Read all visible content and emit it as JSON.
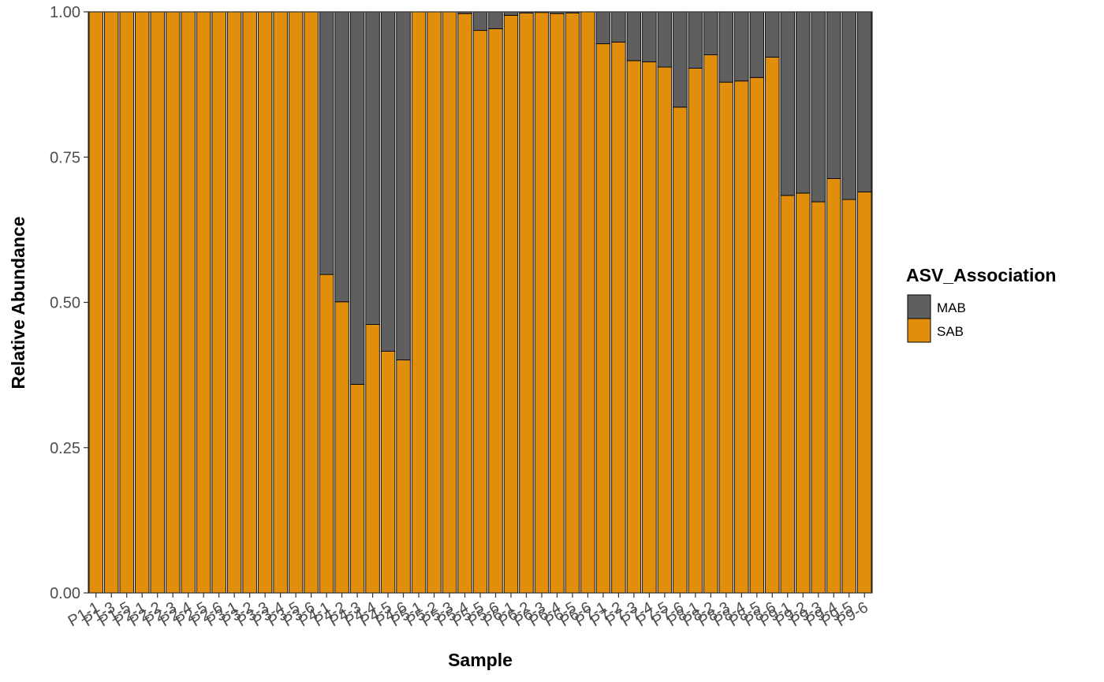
{
  "chart_data": {
    "type": "bar",
    "stacked": true,
    "xlabel": "Sample",
    "ylabel": "Relative Abundance",
    "ylim": [
      0,
      1
    ],
    "yticks": [
      "0.00",
      "0.25",
      "0.50",
      "0.75",
      "1.00"
    ],
    "legend": {
      "title": "ASV_Association",
      "placement": "right",
      "entries": [
        {
          "label": "MAB",
          "color": "#5f5f5f"
        },
        {
          "label": "SAB",
          "color": "#e08e0b"
        }
      ]
    },
    "categories": [
      "P1-1",
      "P1-3",
      "P1-5",
      "P2-1",
      "P2-2",
      "P2-3",
      "P2-4",
      "P2-5",
      "P2-6",
      "P3-1",
      "P3-2",
      "P3-3",
      "P3-4",
      "P3-5",
      "P3-6",
      "P4-1",
      "P4-2",
      "P4-3",
      "P4-4",
      "P4-5",
      "P4-6",
      "P5-1",
      "P5-2",
      "P5-3",
      "P5-4",
      "P5-5",
      "P5-6",
      "P6-1",
      "P6-2",
      "P6-3",
      "P6-4",
      "P6-5",
      "P6-6",
      "P7-1",
      "P7-2",
      "P7-3",
      "P7-4",
      "P7-5",
      "P7-6",
      "P8-1",
      "P8-2",
      "P8-3",
      "P8-4",
      "P8-5",
      "P8-6",
      "P9-1",
      "P9-2",
      "P9-3",
      "P9-4",
      "P9-5",
      "P9-6"
    ],
    "series": [
      {
        "name": "SAB",
        "color": "#e08e0b",
        "values": [
          1.0,
          1.0,
          1.0,
          1.0,
          1.0,
          1.0,
          1.0,
          1.0,
          1.0,
          1.0,
          1.0,
          1.0,
          1.0,
          1.0,
          1.0,
          0.548,
          0.501,
          0.359,
          0.462,
          0.416,
          0.401,
          1.0,
          1.0,
          1.0,
          0.997,
          0.968,
          0.971,
          0.994,
          0.998,
          0.999,
          0.997,
          0.998,
          1.0,
          0.945,
          0.948,
          0.916,
          0.914,
          0.905,
          0.836,
          0.903,
          0.926,
          0.879,
          0.881,
          0.887,
          0.922,
          0.684,
          0.688,
          0.673,
          0.713,
          0.677,
          0.69
        ]
      },
      {
        "name": "MAB",
        "color": "#5f5f5f",
        "values": [
          0.0,
          0.0,
          0.0,
          0.0,
          0.0,
          0.0,
          0.0,
          0.0,
          0.0,
          0.0,
          0.0,
          0.0,
          0.0,
          0.0,
          0.0,
          0.452,
          0.499,
          0.641,
          0.538,
          0.584,
          0.599,
          0.0,
          0.0,
          0.0,
          0.003,
          0.032,
          0.029,
          0.006,
          0.002,
          0.001,
          0.003,
          0.002,
          0.0,
          0.055,
          0.052,
          0.084,
          0.086,
          0.095,
          0.164,
          0.097,
          0.074,
          0.121,
          0.119,
          0.113,
          0.078,
          0.316,
          0.312,
          0.327,
          0.287,
          0.323,
          0.31
        ]
      }
    ]
  }
}
